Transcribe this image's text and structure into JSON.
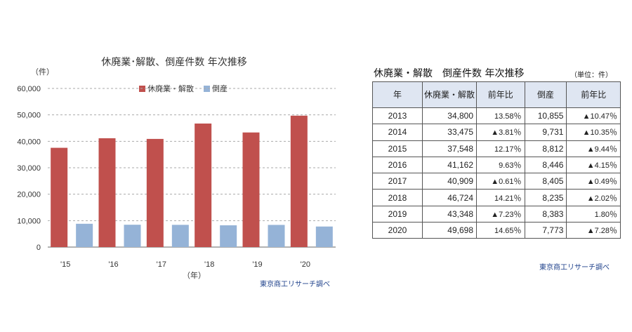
{
  "chart_data": [
    {
      "type": "bar",
      "title": "休廃業･解散、倒産件数 年次推移",
      "unit_label": "（件）",
      "xlabel": "（年）",
      "categories": [
        "'15",
        "'16",
        "'17",
        "'18",
        "'19",
        "'20"
      ],
      "series": [
        {
          "name": "休廃業・解散",
          "values": [
            37548,
            41162,
            40909,
            46724,
            43348,
            49698
          ],
          "color": "#c0504d"
        },
        {
          "name": "倒産",
          "values": [
            8812,
            8446,
            8405,
            8235,
            8383,
            7773
          ],
          "color": "#95b3d7"
        }
      ],
      "y_ticks": [
        "60,000",
        "50,000",
        "40,000",
        "30,000",
        "20,000",
        "10,000",
        "0"
      ],
      "ylim": [
        0,
        60000
      ],
      "grid": true,
      "legend_position": "top",
      "source": "東京商工リサーチ調べ"
    },
    {
      "type": "table",
      "title": "休廃業・解散　倒産件数 年次推移",
      "unit": "（単位：件）",
      "headers": [
        "年",
        "休廃業・解散",
        "前年比",
        "倒産",
        "前年比"
      ],
      "rows": [
        [
          "2013",
          "34,800",
          "13.58％",
          "10,855",
          "▲10.47％"
        ],
        [
          "2014",
          "33,475",
          "▲3.81％",
          "9,731",
          "▲10.35％"
        ],
        [
          "2015",
          "37,548",
          "12.17％",
          "8,812",
          "▲9.44％"
        ],
        [
          "2016",
          "41,162",
          "9.63％",
          "8,446",
          "▲4.15％"
        ],
        [
          "2017",
          "40,909",
          "▲0.61％",
          "8,405",
          "▲0.49％"
        ],
        [
          "2018",
          "46,724",
          "14.21％",
          "8,235",
          "▲2.02％"
        ],
        [
          "2019",
          "43,348",
          "▲7.23％",
          "8,383",
          "1.80％"
        ],
        [
          "2020",
          "49,698",
          "14.65％",
          "7,773",
          "▲7.28％"
        ]
      ],
      "header_color": "#dfe6f2",
      "source": "東京商工リサーチ調べ"
    }
  ]
}
